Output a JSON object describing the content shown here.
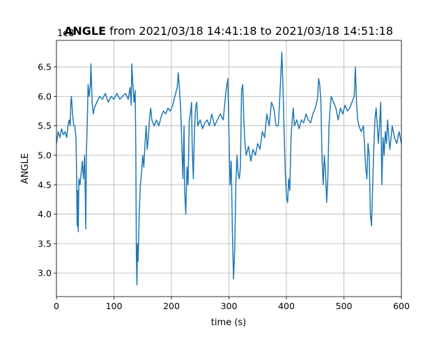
{
  "chart_data": {
    "type": "line",
    "title_variable": "ANGLE",
    "title_range": "from 2021/03/18 14:41:18 to 2021/03/18 14:51:18",
    "x_label": "time (s)",
    "y_label": "ANGLE",
    "y_offset_label": "1e8",
    "xlim": [
      0,
      600
    ],
    "ylim": [
      2.6,
      6.95
    ],
    "xticks": [
      0,
      100,
      200,
      300,
      400,
      500,
      600
    ],
    "yticks": [
      {
        "value": 3,
        "label": "3.0"
      },
      3.5,
      {
        "value": 4,
        "label": "4.0"
      },
      4.5,
      {
        "value": 5,
        "label": "5.0"
      },
      5.5,
      {
        "value": 6,
        "label": "6.0"
      },
      6.5
    ],
    "grid": true,
    "series": [
      {
        "color": "#1f77b4",
        "x": [
          0,
          3,
          6,
          9,
          12,
          15,
          18,
          20,
          22,
          24,
          25,
          26,
          28,
          30,
          32,
          34,
          35,
          36,
          37,
          38,
          39,
          41,
          43,
          45,
          47,
          49,
          50,
          51,
          52,
          54,
          55,
          57,
          59,
          60,
          62,
          64,
          66,
          70,
          75,
          80,
          85,
          90,
          95,
          100,
          105,
          110,
          115,
          120,
          125,
          128,
          130,
          131,
          133,
          135,
          137,
          138,
          139,
          140,
          141,
          142,
          144,
          146,
          148,
          150,
          152,
          154,
          156,
          158,
          160,
          162,
          164,
          166,
          170,
          174,
          178,
          182,
          186,
          190,
          194,
          198,
          202,
          206,
          210,
          212,
          214,
          216,
          218,
          220,
          222,
          223,
          225,
          227,
          229,
          231,
          233,
          235,
          236,
          238,
          240,
          242,
          244,
          246,
          250,
          254,
          258,
          262,
          266,
          270,
          275,
          280,
          285,
          290,
          295,
          298,
          300,
          302,
          304,
          306,
          308,
          310,
          312,
          314,
          316,
          318,
          320,
          322,
          324,
          326,
          328,
          330,
          334,
          338,
          342,
          346,
          350,
          354,
          358,
          362,
          366,
          370,
          374,
          378,
          382,
          386,
          390,
          392,
          394,
          396,
          398,
          400,
          402,
          404,
          406,
          408,
          410,
          412,
          414,
          418,
          422,
          426,
          430,
          434,
          438,
          442,
          446,
          450,
          454,
          456,
          458,
          460,
          462,
          464,
          466,
          468,
          470,
          472,
          474,
          476,
          478,
          482,
          486,
          490,
          494,
          498,
          502,
          506,
          510,
          514,
          518,
          520,
          522,
          524,
          526,
          530,
          534,
          538,
          540,
          542,
          544,
          546,
          548,
          550,
          552,
          554,
          556,
          558,
          560,
          562,
          564,
          566,
          568,
          570,
          572,
          574,
          576,
          578,
          580,
          584,
          588,
          592,
          596,
          600
        ],
        "values": [
          5.2,
          5.4,
          5.3,
          5.45,
          5.35,
          5.4,
          5.3,
          5.5,
          5.6,
          5.5,
          5.9,
          6.0,
          5.7,
          5.5,
          5.5,
          5.3,
          4.7,
          3.8,
          4.4,
          3.7,
          4.6,
          4.5,
          4.7,
          4.9,
          4.6,
          5.0,
          4.4,
          3.75,
          5.0,
          5.7,
          6.2,
          6.0,
          6.2,
          6.55,
          5.9,
          5.7,
          5.8,
          5.9,
          6.0,
          5.95,
          6.05,
          5.9,
          6.0,
          5.95,
          6.05,
          5.95,
          6.0,
          6.05,
          5.95,
          6.15,
          5.85,
          6.55,
          6.2,
          5.9,
          6.1,
          5.1,
          3.3,
          2.8,
          3.5,
          3.2,
          4.0,
          4.5,
          4.7,
          5.0,
          4.8,
          5.2,
          5.5,
          5.1,
          5.3,
          5.65,
          5.8,
          5.6,
          5.5,
          5.6,
          5.5,
          5.65,
          5.75,
          5.7,
          5.8,
          5.75,
          5.85,
          6.0,
          6.15,
          6.4,
          6.1,
          5.8,
          5.2,
          4.6,
          5.5,
          4.4,
          4.0,
          4.8,
          4.5,
          5.6,
          5.7,
          5.9,
          5.2,
          4.6,
          5.4,
          5.8,
          5.9,
          5.5,
          5.6,
          5.45,
          5.55,
          5.6,
          5.5,
          5.7,
          5.5,
          5.6,
          5.7,
          5.6,
          6.1,
          6.3,
          5.4,
          4.5,
          4.9,
          3.7,
          2.9,
          3.4,
          4.5,
          5.0,
          4.7,
          4.6,
          4.8,
          6.1,
          6.2,
          5.6,
          5.2,
          5.0,
          5.15,
          4.9,
          5.1,
          5.0,
          5.2,
          5.1,
          5.4,
          5.3,
          5.7,
          5.5,
          5.9,
          5.8,
          5.5,
          5.5,
          6.3,
          6.75,
          6.2,
          5.4,
          4.7,
          4.3,
          4.2,
          4.6,
          4.4,
          5.3,
          5.6,
          5.8,
          5.5,
          5.6,
          5.45,
          5.6,
          5.55,
          5.7,
          5.6,
          5.55,
          5.7,
          5.8,
          5.95,
          6.3,
          6.2,
          5.9,
          4.9,
          4.5,
          5.0,
          4.7,
          4.2,
          4.6,
          5.5,
          5.8,
          6.0,
          5.9,
          5.8,
          5.6,
          5.8,
          5.7,
          5.85,
          5.75,
          5.8,
          5.9,
          6.0,
          6.5,
          5.9,
          5.6,
          5.5,
          5.4,
          5.5,
          4.8,
          4.6,
          5.2,
          5.0,
          4.0,
          3.8,
          4.5,
          5.1,
          5.6,
          5.8,
          5.5,
          5.2,
          5.5,
          5.9,
          4.5,
          5.3,
          5.0,
          5.4,
          5.2,
          5.6,
          5.3,
          5.1,
          5.5,
          5.3,
          5.2,
          5.4,
          5.2
        ]
      }
    ]
  }
}
